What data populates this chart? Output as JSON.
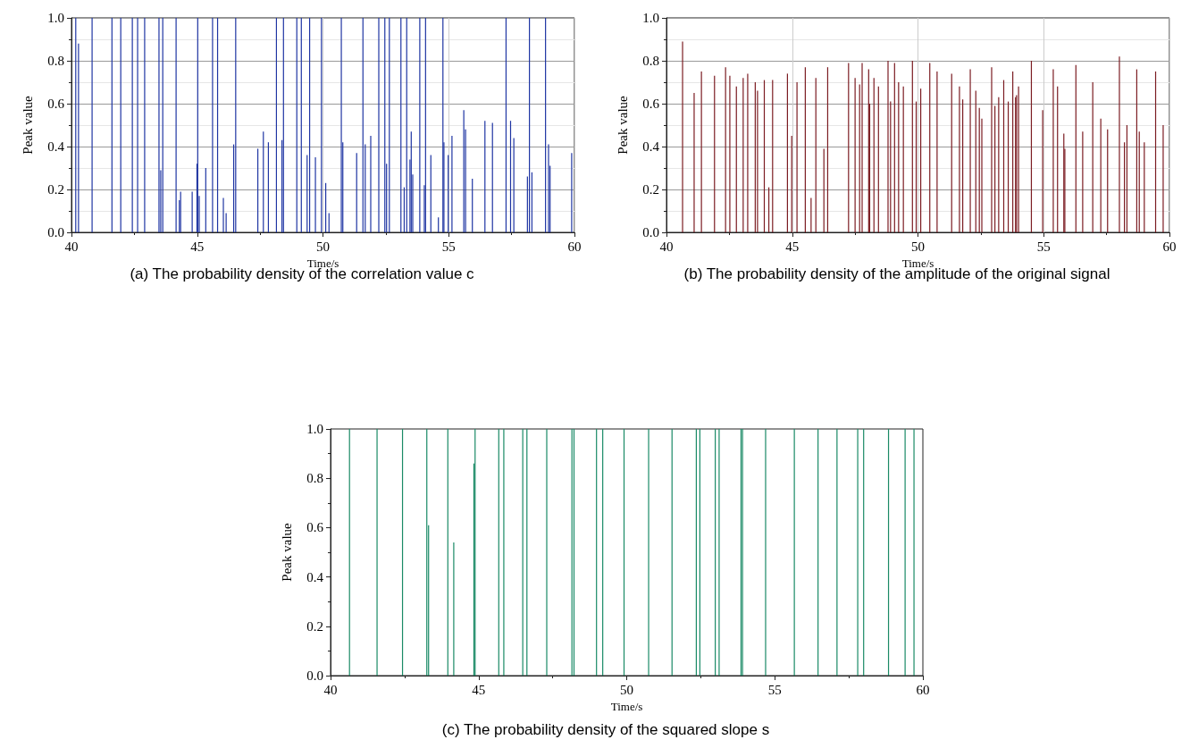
{
  "chart_data": [
    {
      "type": "bar",
      "title": "(a) The probability density of the correlation value c",
      "xlabel": "Time/s",
      "ylabel": "Peak value",
      "color": "#1f35a3",
      "grid": true,
      "x": [
        40.17,
        40.28,
        40.82,
        41.61,
        41.96,
        42.42,
        42.63,
        42.91,
        43.48,
        43.55,
        43.63,
        44.16,
        44.29,
        44.34,
        44.8,
        44.99,
        45.02,
        45.08,
        45.34,
        45.61,
        45.81,
        46.04,
        46.15,
        46.45,
        46.53,
        47.41,
        47.63,
        47.83,
        48.15,
        48.37,
        48.43,
        48.96,
        49.14,
        49.37,
        49.47,
        49.7,
        49.94,
        50.11,
        50.24,
        50.73,
        50.79,
        51.34,
        51.59,
        51.68,
        51.9,
        52.22,
        52.46,
        52.53,
        52.64,
        53.1,
        53.23,
        53.33,
        53.46,
        53.51,
        53.57,
        53.85,
        54.03,
        54.08,
        54.29,
        54.59,
        54.77,
        54.81,
        54.98,
        55.13,
        55.6,
        55.67,
        55.94,
        56.44,
        56.74,
        57.28,
        57.46,
        57.59,
        58.13,
        58.21,
        58.31,
        58.85,
        58.97,
        59.03,
        59.89
      ],
      "values": [
        1,
        0.88,
        1,
        1,
        1,
        1,
        1,
        1,
        1,
        0.29,
        1,
        1,
        0.15,
        0.19,
        0.19,
        0.32,
        1,
        0.17,
        0.3,
        1,
        1,
        0.16,
        0.09,
        0.41,
        1,
        0.39,
        0.47,
        0.42,
        1,
        0.43,
        1,
        1,
        1,
        0.36,
        1,
        0.35,
        1,
        0.23,
        0.09,
        1,
        0.42,
        0.37,
        1,
        0.41,
        0.45,
        1,
        1,
        0.32,
        1,
        1,
        0.21,
        1,
        0.34,
        0.47,
        0.27,
        1,
        0.22,
        1,
        0.36,
        0.07,
        1,
        0.42,
        0.36,
        0.45,
        0.57,
        0.48,
        0.25,
        0.52,
        0.51,
        1,
        0.52,
        0.44,
        0.26,
        1,
        0.28,
        1,
        0.41,
        0.31,
        0.37
      ],
      "xlim": [
        40,
        60
      ],
      "xticks": [
        40,
        45,
        50,
        55,
        60
      ],
      "ylim": [
        0,
        1
      ],
      "yticks": [
        {
          "value": 0,
          "label": "0.0"
        },
        {
          "value": 0.2,
          "label": "0.2"
        },
        {
          "value": 0.4,
          "label": "0.4"
        },
        {
          "value": 0.6,
          "label": "0.6"
        },
        {
          "value": 0.8,
          "label": "0.8"
        },
        {
          "value": 1,
          "label": "1.0"
        }
      ]
    },
    {
      "type": "bar",
      "title": "(b) The probability density of the amplitude of the original signal",
      "xlabel": "Time/s",
      "ylabel": "Peak value",
      "color": "#7b1c22",
      "grid": true,
      "x": [
        40.64,
        41.1,
        41.39,
        41.91,
        42.35,
        42.52,
        42.78,
        43.05,
        43.23,
        43.53,
        43.62,
        43.89,
        44.07,
        44.22,
        44.81,
        44.98,
        45.19,
        45.52,
        45.75,
        45.94,
        46.26,
        46.41,
        47.24,
        47.5,
        47.68,
        47.78,
        48.04,
        48.08,
        48.25,
        48.43,
        48.81,
        48.91,
        49.07,
        49.23,
        49.42,
        49.78,
        49.93,
        50.11,
        50.47,
        50.76,
        51.34,
        51.65,
        51.78,
        52.08,
        52.3,
        52.44,
        52.54,
        52.93,
        53.06,
        53.21,
        53.41,
        53.59,
        53.77,
        53.88,
        53.92,
        54.0,
        54.51,
        54.96,
        55.38,
        55.55,
        55.8,
        55.84,
        56.28,
        56.55,
        56.95,
        57.27,
        57.54,
        58.01,
        58.21,
        58.31,
        58.7,
        58.8,
        59.0,
        59.45,
        59.75
      ],
      "values": [
        0.89,
        0.65,
        0.75,
        0.73,
        0.77,
        0.73,
        0.68,
        0.72,
        0.74,
        0.7,
        0.66,
        0.71,
        0.21,
        0.71,
        0.74,
        0.45,
        0.7,
        0.77,
        0.16,
        0.72,
        0.39,
        0.77,
        0.79,
        0.72,
        0.69,
        0.79,
        0.76,
        0.6,
        0.72,
        0.68,
        0.8,
        0.61,
        0.79,
        0.7,
        0.68,
        0.8,
        0.61,
        0.67,
        0.79,
        0.75,
        0.74,
        0.68,
        0.62,
        0.76,
        0.66,
        0.58,
        0.53,
        0.77,
        0.59,
        0.63,
        0.71,
        0.61,
        0.75,
        0.63,
        0.64,
        0.68,
        0.8,
        0.57,
        0.76,
        0.68,
        0.46,
        0.39,
        0.78,
        0.47,
        0.7,
        0.53,
        0.48,
        0.82,
        0.42,
        0.5,
        0.76,
        0.47,
        0.42,
        0.75,
        0.5
      ],
      "xlim": [
        40,
        60
      ],
      "xticks": [
        40,
        45,
        50,
        55,
        60
      ],
      "ylim": [
        0,
        1
      ],
      "yticks": [
        {
          "value": 0,
          "label": "0.0"
        },
        {
          "value": 0.2,
          "label": "0.2"
        },
        {
          "value": 0.4,
          "label": "0.4"
        },
        {
          "value": 0.6,
          "label": "0.6"
        },
        {
          "value": 0.8,
          "label": "0.8"
        },
        {
          "value": 1,
          "label": "1.0"
        }
      ]
    },
    {
      "type": "bar",
      "title": "(c) The probability density of the squared slope s",
      "xlabel": "Time/s",
      "ylabel": "Peak value",
      "color": "#1a8a66",
      "x": [
        40.64,
        41.57,
        42.43,
        43.25,
        43.31,
        43.96,
        44.16,
        44.84,
        44.88,
        45.68,
        45.85,
        46.49,
        46.63,
        47.3,
        48.15,
        48.22,
        48.98,
        49.19,
        49.91,
        50.74,
        51.53,
        52.35,
        52.47,
        52.99,
        53.12,
        53.86,
        53.91,
        54.69,
        55.66,
        56.46,
        57.1,
        57.8,
        58.0,
        58.84,
        59.4,
        59.7
      ],
      "values": [
        1,
        1,
        1,
        1,
        0.61,
        1,
        0.54,
        0.86,
        1,
        1,
        1,
        1,
        1,
        1,
        1,
        1,
        1,
        1,
        1,
        1,
        1,
        1,
        1,
        1,
        1,
        1,
        1,
        1,
        1,
        1,
        1,
        1,
        1,
        1,
        1,
        1
      ],
      "xlim": [
        40,
        60
      ],
      "xticks": [
        40,
        45,
        50,
        55,
        60
      ],
      "ylim": [
        0,
        1
      ],
      "yticks": [
        {
          "value": 0,
          "label": "0.0"
        },
        {
          "value": 0.2,
          "label": "0.2"
        },
        {
          "value": 0.4,
          "label": "0.4"
        },
        {
          "value": 0.6,
          "label": "0.6"
        },
        {
          "value": 0.8,
          "label": "0.8"
        },
        {
          "value": 1,
          "label": "1.0"
        }
      ]
    }
  ]
}
